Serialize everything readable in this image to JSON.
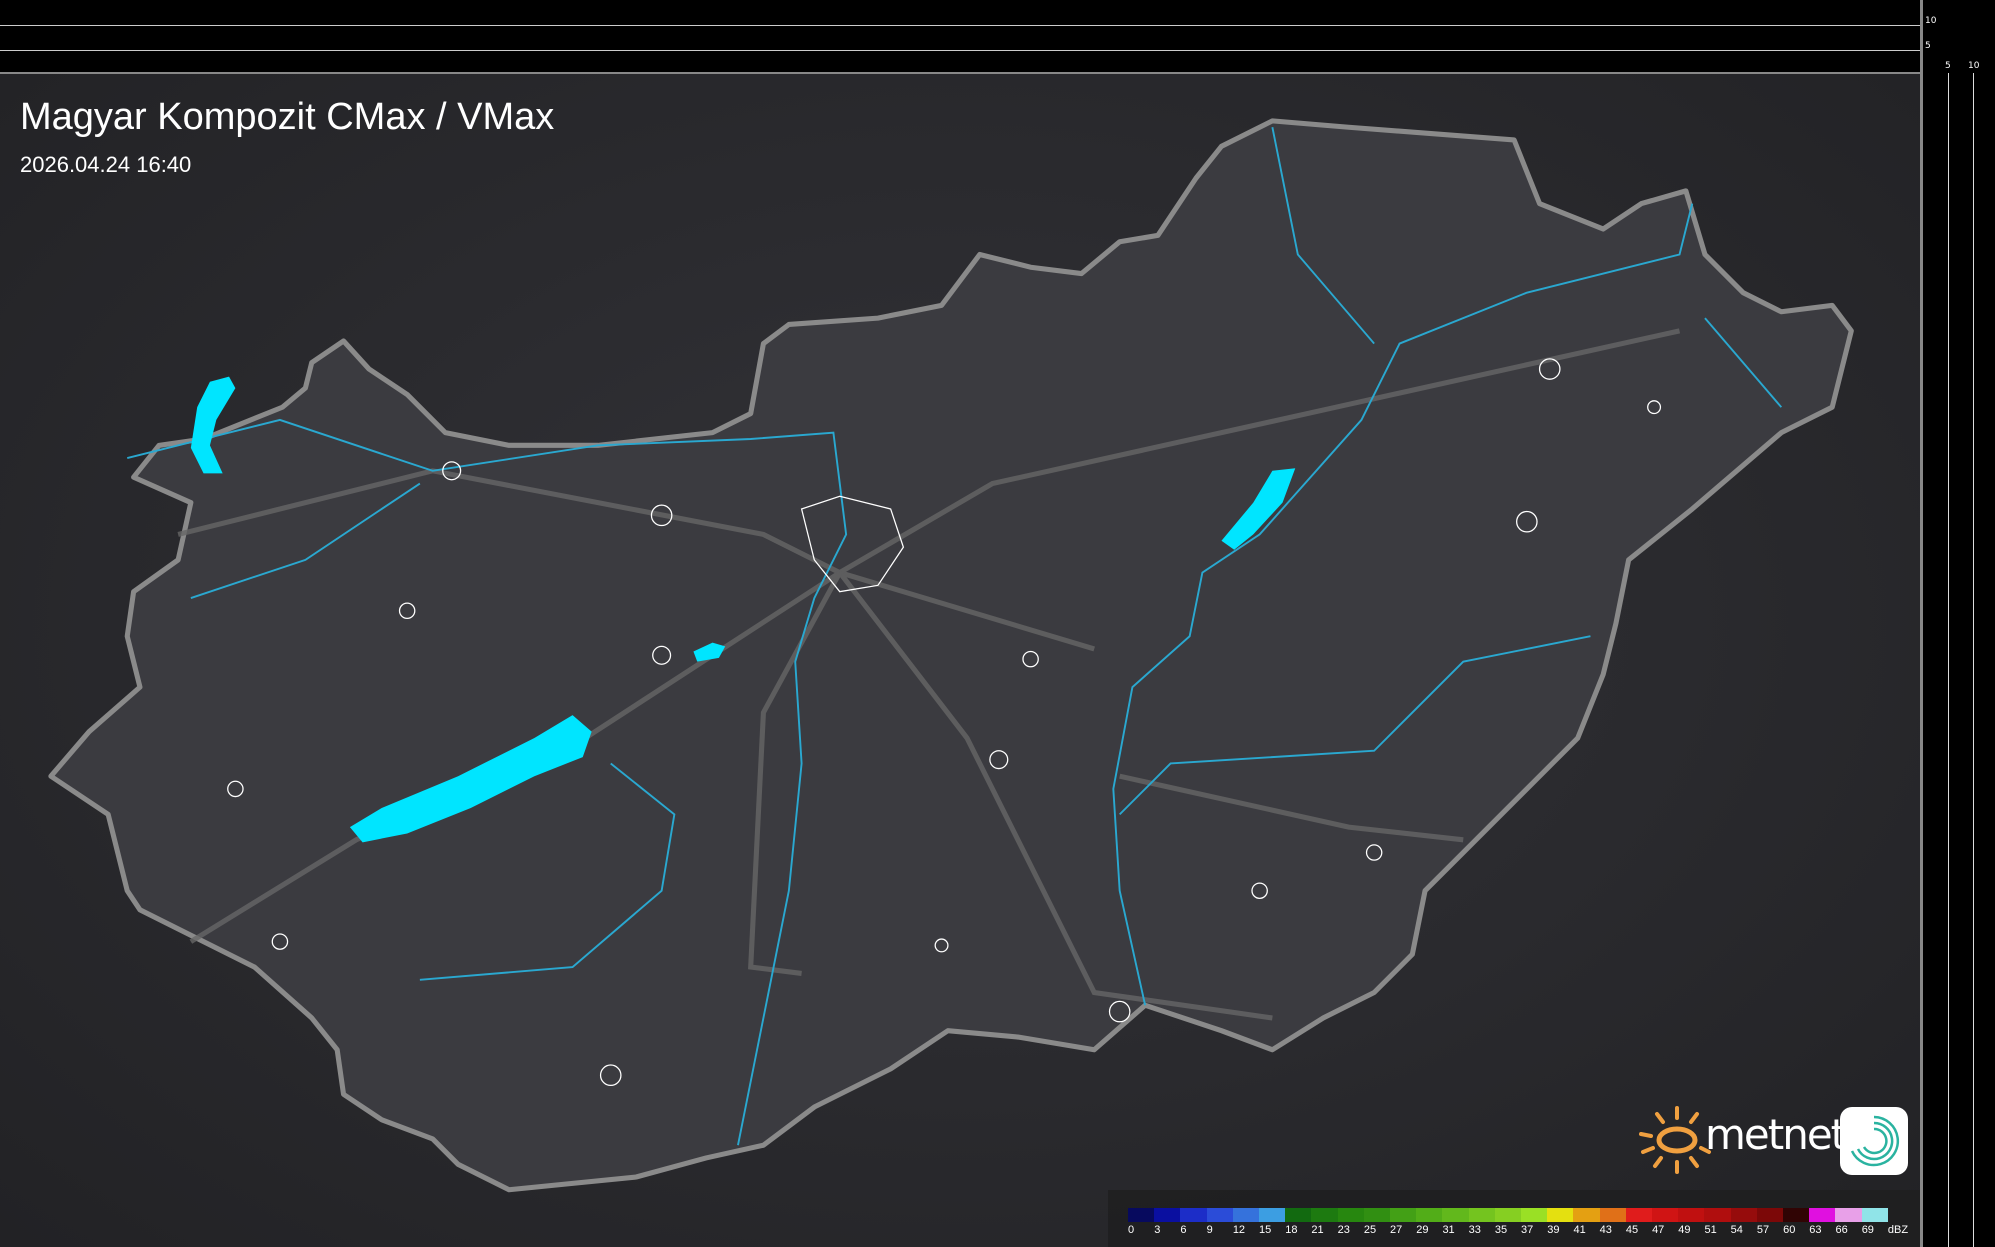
{
  "header": {
    "title": "Magyar Kompozit CMax / VMax",
    "datetime": "2026.04.24 16:40"
  },
  "scale": {
    "vertical_ticks": [
      "10",
      "5"
    ],
    "horizontal_ticks": [
      "5",
      "10"
    ]
  },
  "legend": {
    "unit": "dBZ",
    "labels": [
      "0",
      "3",
      "6",
      "9",
      "12",
      "15",
      "18",
      "21",
      "23",
      "25",
      "27",
      "29",
      "31",
      "33",
      "35",
      "37",
      "39",
      "41",
      "43",
      "45",
      "47",
      "49",
      "51",
      "54",
      "57",
      "60",
      "63",
      "66",
      "69"
    ],
    "colors": [
      "#070a5e",
      "#0a0fa0",
      "#1c2dc8",
      "#2b4cd8",
      "#3572dc",
      "#3c9ee2",
      "#126a10",
      "#1d7a10",
      "#27870f",
      "#318f12",
      "#43a016",
      "#52ad18",
      "#62b81c",
      "#74c41f",
      "#86cf22",
      "#9ae025",
      "#e4e010",
      "#e4a012",
      "#e07018",
      "#e01c1c",
      "#d01414",
      "#c01010",
      "#b00e0e",
      "#960c0c",
      "#7c0808",
      "#300404",
      "#e010e0",
      "#e8a0e8",
      "#90e4e8"
    ]
  },
  "branding": {
    "logo_text": "metnet"
  },
  "colors": {
    "water": "#00e5ff",
    "rivers": "#2aa8d0",
    "border": "#9a9a9a",
    "land": "#3b3b40",
    "background": "#2a2a2d"
  }
}
